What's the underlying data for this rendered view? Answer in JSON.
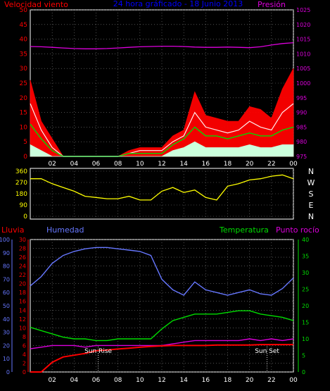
{
  "colors": {
    "background": "#000000",
    "frame": "#ffffff",
    "grid": "#808080",
    "wind_speed": "#ff0000",
    "wind_gust": "#ff0000",
    "wind_avg": "#00dd00",
    "wind_min": "#ccffdd",
    "pressure": "#dd00dd",
    "direction": "#ffff00",
    "rain": "#ff0000",
    "humidity": "#6677ff",
    "temperature": "#00dd00",
    "dewpoint": "#dd00dd",
    "title": "#0000ff"
  },
  "chart_data": [
    {
      "type": "line",
      "title": "24 hora gráficado - 18 Junio 2013",
      "ylabel_left": "Velocidad viento",
      "ylabel_right": "Presión",
      "ylim_left": [
        0,
        50
      ],
      "ylim_right": [
        975,
        1025
      ],
      "yticks_left": [
        "0",
        "5",
        "10",
        "15",
        "20",
        "25",
        "30",
        "35",
        "40",
        "45",
        "50"
      ],
      "yticks_right": [
        "975",
        "980",
        "985",
        "990",
        "995",
        "1000",
        "1005",
        "1010",
        "1015",
        "1020",
        "1025"
      ],
      "x_hours": [
        0,
        1,
        2,
        3,
        4,
        5,
        6,
        7,
        8,
        9,
        10,
        11,
        12,
        13,
        14,
        15,
        16,
        17,
        18,
        19,
        20,
        21,
        22,
        23,
        24
      ],
      "x_tick_labels": [
        "02",
        "04",
        "06",
        "08",
        "10",
        "12",
        "14",
        "16",
        "18",
        "20",
        "22",
        "00"
      ],
      "series": [
        {
          "key": "gust",
          "values": [
            26,
            12,
            6,
            0,
            0,
            0,
            0,
            0,
            0,
            2,
            3,
            3,
            3,
            7,
            9,
            22,
            14,
            13,
            12,
            12,
            17,
            16,
            13,
            23,
            30
          ]
        },
        {
          "key": "speed",
          "values": [
            18,
            9,
            3,
            0,
            0,
            0,
            0,
            0,
            0,
            1,
            2,
            2,
            2,
            5,
            7,
            15,
            10,
            9,
            8,
            9,
            12,
            10,
            9,
            15,
            18
          ]
        },
        {
          "key": "average",
          "values": [
            11,
            6,
            2,
            0,
            0,
            0,
            0,
            0,
            0,
            1,
            1,
            1,
            1,
            4,
            6,
            10,
            7,
            7,
            6,
            7,
            8,
            7,
            7,
            9,
            10
          ]
        },
        {
          "key": "minimum",
          "values": [
            4,
            2,
            0,
            0,
            0,
            0,
            0,
            0,
            0,
            0,
            0,
            0,
            0,
            2,
            3,
            5,
            3,
            3,
            3,
            3,
            4,
            3,
            3,
            4,
            4
          ]
        },
        {
          "key": "pressure",
          "axis": "right",
          "values": [
            1012.5,
            1012.4,
            1012.2,
            1012,
            1011.8,
            1011.7,
            1011.7,
            1011.8,
            1012,
            1012.2,
            1012.4,
            1012.5,
            1012.6,
            1012.6,
            1012.5,
            1012.3,
            1012.2,
            1012.2,
            1012.3,
            1012.2,
            1012.1,
            1012.4,
            1013,
            1013.5,
            1013.8
          ]
        }
      ]
    },
    {
      "type": "line",
      "ylim": [
        0,
        360
      ],
      "yticks": [
        "0",
        "90",
        "180",
        "270",
        "360"
      ],
      "compass_labels": [
        "N",
        "W",
        "S",
        "E",
        "N"
      ],
      "x_hours": [
        0,
        1,
        2,
        3,
        4,
        5,
        6,
        7,
        8,
        9,
        10,
        11,
        12,
        13,
        14,
        15,
        16,
        17,
        18,
        19,
        20,
        21,
        22,
        23,
        24
      ],
      "series": [
        {
          "key": "direction",
          "values": [
            300,
            300,
            260,
            230,
            200,
            160,
            150,
            140,
            140,
            160,
            130,
            130,
            200,
            230,
            190,
            210,
            150,
            130,
            240,
            260,
            290,
            300,
            320,
            330,
            300
          ]
        }
      ]
    },
    {
      "type": "line",
      "labels": {
        "rain": "Lluvia",
        "humidity": "Humedad",
        "temperature": "Temperatura",
        "dewpoint": "Punto rocío"
      },
      "ylim_humidity": [
        0,
        100
      ],
      "yticks_humidity": [
        "0",
        "10",
        "20",
        "30",
        "40",
        "50",
        "60",
        "70",
        "80",
        "90",
        "100"
      ],
      "ylim_rain": [
        0,
        30
      ],
      "yticks_rain": [
        "0",
        "2",
        "4",
        "6",
        "8",
        "10",
        "12",
        "14",
        "16",
        "18",
        "20",
        "22",
        "24",
        "26",
        "28",
        "30"
      ],
      "ylim_temp": [
        0,
        40
      ],
      "yticks_temp": [
        "0",
        "5",
        "10",
        "15",
        "20",
        "25",
        "30",
        "35",
        "40"
      ],
      "x_hours": [
        0,
        1,
        2,
        3,
        4,
        5,
        6,
        7,
        8,
        9,
        10,
        11,
        12,
        13,
        14,
        15,
        16,
        17,
        18,
        19,
        20,
        21,
        22,
        23,
        24
      ],
      "x_tick_labels": [
        "02",
        "04",
        "06",
        "08",
        "10",
        "12",
        "14",
        "16",
        "18",
        "20",
        "22",
        "00"
      ],
      "annotations": {
        "sunrise": "Sun Rise",
        "sunset": "Sun Set",
        "sunrise_hour": 6.2,
        "sunset_hour": 21.6
      },
      "series": [
        {
          "key": "humidity",
          "values": [
            65,
            72,
            82,
            88,
            91,
            93,
            94,
            94,
            93,
            92,
            91,
            88,
            70,
            62,
            58,
            68,
            62,
            60,
            58,
            60,
            62,
            59,
            58,
            63,
            71
          ]
        },
        {
          "key": "temperature",
          "values": [
            13.5,
            12.5,
            11.5,
            10.5,
            10,
            10,
            9.5,
            9.5,
            10,
            10,
            10,
            10,
            13,
            15.5,
            16.5,
            17.5,
            17.5,
            17.5,
            18,
            18.5,
            18.5,
            17.5,
            17,
            16.5,
            15.5
          ]
        },
        {
          "key": "dewpoint",
          "values": [
            7,
            7.5,
            8,
            8,
            8,
            7.5,
            8,
            8,
            8,
            8,
            8,
            8,
            8,
            8.5,
            9,
            9.5,
            9.5,
            9.5,
            9.5,
            9.5,
            10,
            9.5,
            10,
            9.5,
            10
          ]
        },
        {
          "key": "rain",
          "values": [
            0,
            0,
            2.2,
            3.4,
            3.8,
            4.2,
            4.8,
            5.0,
            5.2,
            5.4,
            5.6,
            5.8,
            5.9,
            6.0,
            6.0,
            6.0,
            6.0,
            6.1,
            6.1,
            6.1,
            6.1,
            6.2,
            6.2,
            6.2,
            6.2
          ]
        }
      ]
    }
  ]
}
